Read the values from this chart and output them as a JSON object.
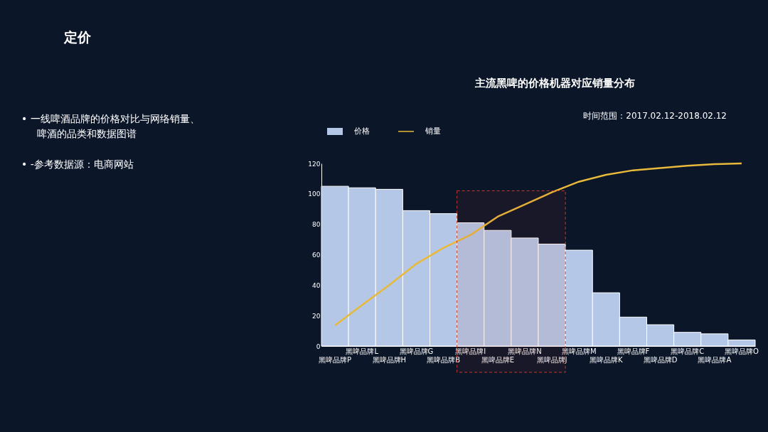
{
  "chart_data": {
    "type": "bar",
    "title": "主流黑啤的价格机器对应销量分布",
    "subtitle": "时间范围：2017.02.12-2018.02.12",
    "annotations": [
      "定价",
      "• 一线啤酒品牌的价格对比与网络销量、",
      "啤酒的品类和数据图谱",
      "• -参考数据源：电商网站"
    ],
    "categories": [
      "黑啤品牌P",
      "黑啤品牌L",
      "黑啤品牌H",
      "黑啤品牌G",
      "黑啤品牌B",
      "黑啤品牌I",
      "黑啤品牌E",
      "黑啤品牌N",
      "黑啤品牌J",
      "黑啤品牌M",
      "黑啤品牌K",
      "黑啤品牌F",
      "黑啤品牌D",
      "黑啤品牌C",
      "黑啤品牌A",
      "黑啤品牌O"
    ],
    "series": [
      {
        "name": "价格",
        "color": "#b4c7e7",
        "values": [
          105,
          104,
          103,
          89,
          87,
          81,
          76,
          71,
          67,
          63,
          35,
          19,
          14,
          9,
          8,
          4
        ]
      },
      {
        "name": "销量",
        "type": "line",
        "color": "#e8b93a",
        "values": [
          13.5,
          27,
          40,
          54,
          64.5,
          73,
          85,
          93,
          101,
          108,
          112.5,
          115.5,
          117,
          118.5,
          119.5,
          120
        ]
      }
    ],
    "bands": [
      {
        "axis": "x",
        "from": "黑啤品牌I",
        "to": "黑啤品牌J",
        "color": "#c0392b"
      }
    ],
    "ylim": [
      0,
      120
    ],
    "yticks": [
      0,
      20,
      40,
      60,
      80,
      100,
      120
    ],
    "grid": false,
    "legend": "top left"
  }
}
